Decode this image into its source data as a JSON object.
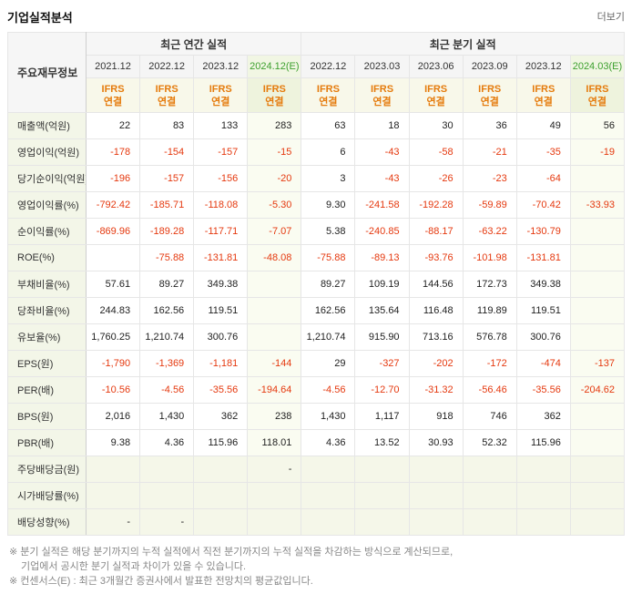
{
  "page": {
    "title": "기업실적분석",
    "more_link": "더보기"
  },
  "table": {
    "corner_header": "주요재무정보",
    "groups": [
      {
        "label": "최근 연간 실적",
        "span": 4
      },
      {
        "label": "최근 분기 실적",
        "span": 6
      }
    ],
    "columns": [
      {
        "label": "2021.12",
        "estimate": false,
        "section": "annual"
      },
      {
        "label": "2022.12",
        "estimate": false,
        "section": "annual"
      },
      {
        "label": "2023.12",
        "estimate": false,
        "section": "annual"
      },
      {
        "label": "2024.12(E)",
        "estimate": true,
        "section": "annual"
      },
      {
        "label": "2022.12",
        "estimate": false,
        "section": "quarter"
      },
      {
        "label": "2023.03",
        "estimate": false,
        "section": "quarter"
      },
      {
        "label": "2023.06",
        "estimate": false,
        "section": "quarter"
      },
      {
        "label": "2023.09",
        "estimate": false,
        "section": "quarter"
      },
      {
        "label": "2023.12",
        "estimate": false,
        "section": "quarter"
      },
      {
        "label": "2024.03(E)",
        "estimate": true,
        "section": "quarter"
      }
    ],
    "ifrs_lines": [
      "IFRS",
      "연결"
    ],
    "rows": [
      {
        "label": "매출액(억원)",
        "shaded": false,
        "values": [
          "22",
          "83",
          "133",
          "283",
          "63",
          "18",
          "30",
          "36",
          "49",
          "56"
        ]
      },
      {
        "label": "영업이익(억원)",
        "shaded": false,
        "values": [
          "-178",
          "-154",
          "-157",
          "-15",
          "6",
          "-43",
          "-58",
          "-21",
          "-35",
          "-19"
        ]
      },
      {
        "label": "당기순이익(억원)",
        "shaded": false,
        "values": [
          "-196",
          "-157",
          "-156",
          "-20",
          "3",
          "-43",
          "-26",
          "-23",
          "-64",
          ""
        ]
      },
      {
        "label": "영업이익률(%)",
        "shaded": false,
        "values": [
          "-792.42",
          "-185.71",
          "-118.08",
          "-5.30",
          "9.30",
          "-241.58",
          "-192.28",
          "-59.89",
          "-70.42",
          "-33.93"
        ]
      },
      {
        "label": "순이익률(%)",
        "shaded": false,
        "values": [
          "-869.96",
          "-189.28",
          "-117.71",
          "-7.07",
          "5.38",
          "-240.85",
          "-88.17",
          "-63.22",
          "-130.79",
          ""
        ]
      },
      {
        "label": "ROE(%)",
        "shaded": false,
        "values": [
          "",
          "-75.88",
          "-131.81",
          "-48.08",
          "-75.88",
          "-89.13",
          "-93.76",
          "-101.98",
          "-131.81",
          ""
        ]
      },
      {
        "label": "부채비율(%)",
        "shaded": false,
        "values": [
          "57.61",
          "89.27",
          "349.38",
          "",
          "89.27",
          "109.19",
          "144.56",
          "172.73",
          "349.38",
          ""
        ]
      },
      {
        "label": "당좌비율(%)",
        "shaded": false,
        "values": [
          "244.83",
          "162.56",
          "119.51",
          "",
          "162.56",
          "135.64",
          "116.48",
          "119.89",
          "119.51",
          ""
        ]
      },
      {
        "label": "유보율(%)",
        "shaded": false,
        "values": [
          "1,760.25",
          "1,210.74",
          "300.76",
          "",
          "1,210.74",
          "915.90",
          "713.16",
          "576.78",
          "300.76",
          ""
        ]
      },
      {
        "label": "EPS(원)",
        "shaded": false,
        "values": [
          "-1,790",
          "-1,369",
          "-1,181",
          "-144",
          "29",
          "-327",
          "-202",
          "-172",
          "-474",
          "-137"
        ]
      },
      {
        "label": "PER(배)",
        "shaded": false,
        "values": [
          "-10.56",
          "-4.56",
          "-35.56",
          "-194.64",
          "-4.56",
          "-12.70",
          "-31.32",
          "-56.46",
          "-35.56",
          "-204.62"
        ]
      },
      {
        "label": "BPS(원)",
        "shaded": false,
        "values": [
          "2,016",
          "1,430",
          "362",
          "238",
          "1,430",
          "1,117",
          "918",
          "746",
          "362",
          ""
        ]
      },
      {
        "label": "PBR(배)",
        "shaded": false,
        "values": [
          "9.38",
          "4.36",
          "115.96",
          "118.01",
          "4.36",
          "13.52",
          "30.93",
          "52.32",
          "115.96",
          ""
        ]
      },
      {
        "label": "주당배당금(원)",
        "shaded": true,
        "values": [
          "",
          "",
          "",
          "-",
          "",
          "",
          "",
          "",
          "",
          ""
        ]
      },
      {
        "label": "시가배당률(%)",
        "shaded": true,
        "values": [
          "",
          "",
          "",
          "",
          "",
          "",
          "",
          "",
          "",
          ""
        ]
      },
      {
        "label": "배당성향(%)",
        "shaded": true,
        "values": [
          "-",
          "-",
          "",
          "",
          "",
          "",
          "",
          "",
          "",
          ""
        ]
      }
    ]
  },
  "footnotes": [
    "※ 분기 실적은 해당 분기까지의 누적 실적에서 직전 분기까지의 누적 실적을 차감하는 방식으로 계산되므로,",
    "기업에서 공시한 분기 실적과 차이가 있을 수 있습니다.",
    "※ 컨센서스(E) : 최근 3개월간 증권사에서 발표한 전망치의 평균값입니다."
  ]
}
